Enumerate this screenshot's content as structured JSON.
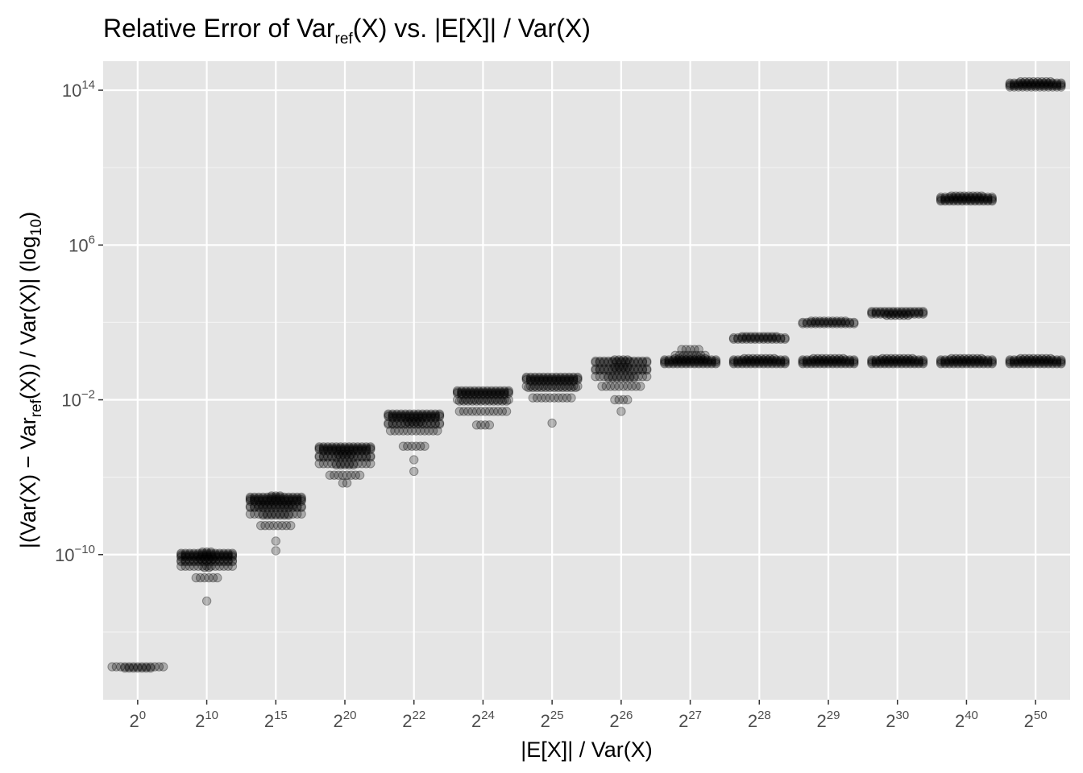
{
  "chart_data": {
    "type": "scatter",
    "title": {
      "before": "Relative Error of Var",
      "sub": "ref",
      "after": "(X) vs. |E[X]| / Var(X)"
    },
    "xlabel": "|E[X]| / Var(X)",
    "ylabel": {
      "before": "|(Var(X) − Var",
      "sub": "ref",
      "middle": "(X)) / Var(X)|  (log",
      "sub2": "10",
      "after": ")"
    },
    "y_scale": "log10",
    "ylim_log10": [
      -17.5,
      15.5
    ],
    "grid": true,
    "background_color": "#e5e5e5",
    "point_color": "#000000",
    "point_alpha": 0.25,
    "x_categories": [
      {
        "base": "2",
        "exp": "0"
      },
      {
        "base": "2",
        "exp": "10"
      },
      {
        "base": "2",
        "exp": "15"
      },
      {
        "base": "2",
        "exp": "20"
      },
      {
        "base": "2",
        "exp": "22"
      },
      {
        "base": "2",
        "exp": "24"
      },
      {
        "base": "2",
        "exp": "25"
      },
      {
        "base": "2",
        "exp": "26"
      },
      {
        "base": "2",
        "exp": "27"
      },
      {
        "base": "2",
        "exp": "28"
      },
      {
        "base": "2",
        "exp": "29"
      },
      {
        "base": "2",
        "exp": "30"
      },
      {
        "base": "2",
        "exp": "40"
      },
      {
        "base": "2",
        "exp": "50"
      }
    ],
    "y_ticks": [
      {
        "value": -10,
        "base": "10",
        "exp": "−10"
      },
      {
        "value": -2,
        "base": "10",
        "exp": "−2"
      },
      {
        "value": 6,
        "base": "10",
        "exp": "6"
      },
      {
        "value": 14,
        "base": "10",
        "exp": "14"
      }
    ],
    "series": [
      {
        "category": "2^0",
        "groups": [
          {
            "log10_y": -15.8,
            "count": 20
          }
        ]
      },
      {
        "category": "2^10",
        "groups": [
          {
            "log10_y": -10,
            "count": 55
          },
          {
            "log10_y": -10.3,
            "count": 30
          },
          {
            "log10_y": -10.6,
            "count": 15
          },
          {
            "log10_y": -11.2,
            "count": 6
          },
          {
            "log10_y": -12.4,
            "count": 1
          }
        ]
      },
      {
        "category": "2^15",
        "groups": [
          {
            "log10_y": -7.1,
            "count": 55
          },
          {
            "log10_y": -7.5,
            "count": 35
          },
          {
            "log10_y": -7.9,
            "count": 20
          },
          {
            "log10_y": -8.5,
            "count": 8
          },
          {
            "log10_y": -9.3,
            "count": 1
          },
          {
            "log10_y": -9.8,
            "count": 1
          }
        ]
      },
      {
        "category": "2^20",
        "groups": [
          {
            "log10_y": -4.5,
            "count": 50
          },
          {
            "log10_y": -4.9,
            "count": 30
          },
          {
            "log10_y": -5.3,
            "count": 18
          },
          {
            "log10_y": -5.9,
            "count": 8
          },
          {
            "log10_y": -6.3,
            "count": 2
          }
        ]
      },
      {
        "category": "2^22",
        "groups": [
          {
            "log10_y": -2.8,
            "count": 50
          },
          {
            "log10_y": -3.2,
            "count": 30
          },
          {
            "log10_y": -3.6,
            "count": 12
          },
          {
            "log10_y": -4.4,
            "count": 6
          },
          {
            "log10_y": -5.1,
            "count": 1
          },
          {
            "log10_y": -5.7,
            "count": 1
          }
        ]
      },
      {
        "category": "2^24",
        "groups": [
          {
            "log10_y": -1.6,
            "count": 50
          },
          {
            "log10_y": -2.0,
            "count": 25
          },
          {
            "log10_y": -2.6,
            "count": 12
          },
          {
            "log10_y": -3.3,
            "count": 4
          }
        ]
      },
      {
        "category": "2^25",
        "groups": [
          {
            "log10_y": -0.9,
            "count": 50
          },
          {
            "log10_y": -1.3,
            "count": 25
          },
          {
            "log10_y": -1.9,
            "count": 10
          },
          {
            "log10_y": -3.2,
            "count": 1
          }
        ]
      },
      {
        "category": "2^26",
        "groups": [
          {
            "log10_y": 0,
            "count": 30
          },
          {
            "log10_y": -0.4,
            "count": 30
          },
          {
            "log10_y": -0.8,
            "count": 20
          },
          {
            "log10_y": -1.3,
            "count": 10
          },
          {
            "log10_y": -2.0,
            "count": 4
          },
          {
            "log10_y": -2.6,
            "count": 1
          }
        ]
      },
      {
        "category": "2^27",
        "groups": [
          {
            "log10_y": 0,
            "count": 60
          },
          {
            "log10_y": 0.3,
            "count": 8
          },
          {
            "log10_y": 0.6,
            "count": 5
          }
        ]
      },
      {
        "category": "2^28",
        "groups": [
          {
            "log10_y": 0,
            "count": 60
          },
          {
            "log10_y": 1.2,
            "count": 35
          }
        ]
      },
      {
        "category": "2^29",
        "groups": [
          {
            "log10_y": 0,
            "count": 60
          },
          {
            "log10_y": 2.0,
            "count": 35
          }
        ]
      },
      {
        "category": "2^30",
        "groups": [
          {
            "log10_y": 0,
            "count": 60
          },
          {
            "log10_y": 2.5,
            "count": 45
          }
        ]
      },
      {
        "category": "2^40",
        "groups": [
          {
            "log10_y": 0,
            "count": 60
          },
          {
            "log10_y": 8.4,
            "count": 60
          }
        ]
      },
      {
        "category": "2^50",
        "groups": [
          {
            "log10_y": 0,
            "count": 60
          },
          {
            "log10_y": 14.3,
            "count": 60
          }
        ]
      }
    ]
  }
}
